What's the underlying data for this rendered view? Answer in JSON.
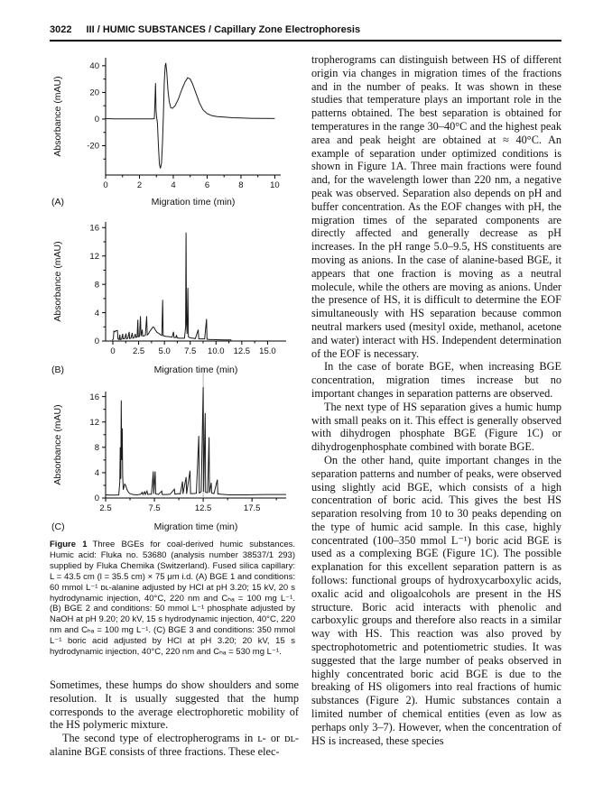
{
  "header": {
    "page_number": "3022",
    "running_title": "III / HUMIC SUBSTANCES / Capillary Zone Electrophoresis"
  },
  "figure": {
    "caption_lead": "Figure 1",
    "caption_text": "Three BGEs for coal-derived humic substances. Humic acid: Fluka no. 53680 (analysis number 38537/1 293) supplied by Fluka Chemika (Switzerland). Fused silica capillary: L = 43.5 cm (l = 35.5 cm) × 75 μm i.d. (A) BGE 1 and conditions: 60 mmol L⁻¹ ᴅʟ-alanine adjusted by HCl at pH 3.20; 15 kV, 20 s hydrodynamic injection, 40°C, 220 nm and Cₕₐ = 100 mg L⁻¹. (B) BGE 2 and conditions: 50 mmol L⁻¹ phosphate adjusted by NaOH at pH 9.20; 20 kV, 15 s hydrodynamic injection, 40°C, 220 nm and Cₕₐ = 100 mg L⁻¹. (C) BGE 3 and conditions: 350 mmol L⁻¹ boric acid adjusted by HCl at pH 3.20; 20 kV, 15 s hydrodynamic injection, 40°C, 220 nm and Cₕₐ = 530 mg L⁻¹."
  },
  "chart_data": [
    {
      "panel": "(A)",
      "type": "line",
      "xlabel": "Migration time (min)",
      "ylabel": "Absorbance (mAU)",
      "xlim": [
        0,
        10.35
      ],
      "ylim": [
        -42,
        46
      ],
      "xticks": {
        "values": [
          0,
          2,
          4,
          6,
          8,
          10
        ],
        "labels": [
          "0",
          "2",
          "4",
          "6",
          "8",
          "10"
        ]
      },
      "xminor": [
        1,
        3,
        5,
        7,
        9
      ],
      "yticks": {
        "values": [
          -20,
          0,
          20,
          40
        ],
        "labels": [
          "-20",
          "0",
          "20",
          "40"
        ]
      },
      "yminor": [
        -30,
        -10,
        10,
        30
      ],
      "line_color": "#1a1a1a",
      "points": [
        [
          0,
          0.3
        ],
        [
          0.5,
          0.2
        ],
        [
          1,
          0.2
        ],
        [
          1.5,
          0.1
        ],
        [
          2,
          0.2
        ],
        [
          2.5,
          0.1
        ],
        [
          2.8,
          0.2
        ],
        [
          2.88,
          0.5
        ],
        [
          2.92,
          14
        ],
        [
          2.95,
          27
        ],
        [
          2.98,
          6
        ],
        [
          3.02,
          1
        ],
        [
          3.06,
          -3
        ],
        [
          3.12,
          -20
        ],
        [
          3.18,
          -34
        ],
        [
          3.24,
          -37
        ],
        [
          3.3,
          -33
        ],
        [
          3.36,
          -18
        ],
        [
          3.42,
          5
        ],
        [
          3.47,
          28
        ],
        [
          3.52,
          40
        ],
        [
          3.56,
          42
        ],
        [
          3.62,
          34
        ],
        [
          3.68,
          22
        ],
        [
          3.76,
          13
        ],
        [
          3.85,
          8.5
        ],
        [
          3.95,
          8
        ],
        [
          4.1,
          10
        ],
        [
          4.3,
          15
        ],
        [
          4.5,
          22
        ],
        [
          4.7,
          28
        ],
        [
          4.85,
          31
        ],
        [
          5,
          30
        ],
        [
          5.15,
          26
        ],
        [
          5.35,
          19
        ],
        [
          5.55,
          12
        ],
        [
          5.75,
          7
        ],
        [
          6,
          4
        ],
        [
          6.3,
          2.5
        ],
        [
          6.6,
          1.8
        ],
        [
          7,
          1.5
        ],
        [
          7.5,
          1
        ],
        [
          8,
          0.8
        ],
        [
          8.5,
          0.6
        ],
        [
          9,
          0.5
        ],
        [
          9.5,
          0.5
        ],
        [
          10,
          0.4
        ]
      ]
    },
    {
      "panel": "(B)",
      "type": "line",
      "xlabel": "Migration time (min)",
      "ylabel": "Absorbance (mAU)",
      "xlim": [
        -0.7,
        16.8
      ],
      "ylim": [
        0,
        16.8
      ],
      "xticks": {
        "values": [
          0,
          2.5,
          5,
          7.5,
          10,
          12.5,
          15
        ],
        "labels": [
          "0",
          "2.5",
          "5.0",
          "7.5",
          "10.0",
          "12.5",
          "15.0"
        ]
      },
      "xminor": [
        1.25,
        3.75,
        6.25,
        8.75,
        11.25,
        13.75
      ],
      "yticks": {
        "values": [
          0,
          4,
          8,
          12,
          16
        ],
        "labels": [
          "0",
          "4",
          "8",
          "12",
          "16"
        ]
      },
      "yminor": [
        2,
        6,
        10,
        14
      ],
      "line_color": "#1a1a1a",
      "points": [
        [
          -0.05,
          0.1
        ],
        [
          0.05,
          0.3
        ],
        [
          0.1,
          1.4
        ],
        [
          0.2,
          1.3
        ],
        [
          0.3,
          1.45
        ],
        [
          0.45,
          1.5
        ],
        [
          0.5,
          0.3
        ],
        [
          0.6,
          0.2
        ],
        [
          0.68,
          0.9
        ],
        [
          0.72,
          0.2
        ],
        [
          0.85,
          0.25
        ],
        [
          0.95,
          1
        ],
        [
          1,
          0.3
        ],
        [
          1.15,
          0.35
        ],
        [
          1.28,
          1.05
        ],
        [
          1.33,
          0.3
        ],
        [
          1.45,
          0.4
        ],
        [
          1.58,
          1.3
        ],
        [
          1.63,
          0.35
        ],
        [
          1.75,
          0.4
        ],
        [
          1.88,
          1.15
        ],
        [
          1.93,
          0.4
        ],
        [
          2.05,
          0.45
        ],
        [
          2.18,
          1
        ],
        [
          2.23,
          0.5
        ],
        [
          2.35,
          0.6
        ],
        [
          2.42,
          3
        ],
        [
          2.47,
          0.6
        ],
        [
          2.58,
          0.65
        ],
        [
          2.68,
          3.5
        ],
        [
          2.73,
          0.7
        ],
        [
          2.85,
          1.6
        ],
        [
          2.9,
          0.7
        ],
        [
          3.05,
          0.75
        ],
        [
          3.15,
          0.8
        ],
        [
          3.28,
          3.5
        ],
        [
          3.33,
          0.85
        ],
        [
          3.45,
          1
        ],
        [
          3.6,
          1.4
        ],
        [
          3.75,
          1.7
        ],
        [
          3.9,
          2
        ],
        [
          4,
          1.9
        ],
        [
          4.15,
          1.5
        ],
        [
          4.3,
          1.2
        ],
        [
          4.45,
          1.1
        ],
        [
          4.6,
          0.9
        ],
        [
          4.75,
          0.8
        ],
        [
          4.83,
          5.8
        ],
        [
          4.88,
          0.75
        ],
        [
          5,
          0.7
        ],
        [
          5.2,
          0.65
        ],
        [
          5.5,
          0.6
        ],
        [
          5.75,
          0.55
        ],
        [
          5.88,
          1.3
        ],
        [
          5.93,
          0.5
        ],
        [
          6.1,
          0.5
        ],
        [
          6.18,
          0.85
        ],
        [
          6.23,
          0.45
        ],
        [
          6.45,
          0.4
        ],
        [
          6.7,
          0.4
        ],
        [
          6.95,
          0.4
        ],
        [
          7.05,
          2
        ],
        [
          7.1,
          15.3
        ],
        [
          7.14,
          2.5
        ],
        [
          7.2,
          1
        ],
        [
          7.27,
          7.5
        ],
        [
          7.32,
          0.6
        ],
        [
          7.5,
          0.45
        ],
        [
          7.75,
          0.4
        ],
        [
          8,
          0.35
        ],
        [
          8.28,
          1.6
        ],
        [
          8.33,
          0.3
        ],
        [
          8.6,
          0.3
        ],
        [
          8.9,
          0.3
        ],
        [
          9.08,
          3.1
        ],
        [
          9.13,
          0.25
        ],
        [
          9.4,
          0.2
        ],
        [
          9.8,
          0.2
        ],
        [
          10.3,
          0.18
        ],
        [
          10.9,
          0.15
        ],
        [
          11.5,
          0.15
        ]
      ]
    },
    {
      "panel": "(C)",
      "type": "line",
      "xlabel": "Migration time (min)",
      "ylabel": "Absorbance (mAU)",
      "xlim": [
        2.5,
        21
      ],
      "ylim": [
        0,
        16.8
      ],
      "xticks": {
        "values": [
          2.5,
          7.5,
          12.5,
          17.5
        ],
        "labels": [
          "2.5",
          "7.5",
          "12.5",
          "17.5"
        ]
      },
      "xminor": [
        5,
        10,
        15,
        20
      ],
      "yticks": {
        "values": [
          0,
          4,
          8,
          12,
          16
        ],
        "labels": [
          "0",
          "4",
          "8",
          "12",
          "16"
        ]
      },
      "yminor": [
        2,
        6,
        10,
        14
      ],
      "line_color": "#1a1a1a",
      "clipped_peak_x": 12.5,
      "clipped_line_color": "#b5b5b5",
      "points": [
        [
          2.5,
          0.5
        ],
        [
          3,
          0.45
        ],
        [
          3.5,
          0.45
        ],
        [
          3.85,
          0.5
        ],
        [
          3.95,
          2.5
        ],
        [
          4,
          8
        ],
        [
          4.05,
          3
        ],
        [
          4.1,
          15.4
        ],
        [
          4.15,
          6
        ],
        [
          4.2,
          11
        ],
        [
          4.25,
          3.5
        ],
        [
          4.3,
          1.3
        ],
        [
          4.45,
          2.2
        ],
        [
          4.55,
          2
        ],
        [
          4.7,
          1.3
        ],
        [
          4.85,
          0.9
        ],
        [
          5,
          0.7
        ],
        [
          5.3,
          0.55
        ],
        [
          5.7,
          0.5
        ],
        [
          6.1,
          0.6
        ],
        [
          6.25,
          0.9
        ],
        [
          6.32,
          0.55
        ],
        [
          6.5,
          1
        ],
        [
          6.57,
          0.55
        ],
        [
          6.75,
          1.1
        ],
        [
          6.82,
          0.55
        ],
        [
          7,
          0.6
        ],
        [
          7.2,
          0.6
        ],
        [
          7.38,
          4.2
        ],
        [
          7.43,
          0.65
        ],
        [
          7.58,
          4.2
        ],
        [
          7.63,
          0.65
        ],
        [
          7.9,
          0.55
        ],
        [
          8.25,
          1.1
        ],
        [
          8.3,
          0.55
        ],
        [
          8.7,
          0.55
        ],
        [
          9.1,
          0.6
        ],
        [
          9.55,
          1.4
        ],
        [
          9.6,
          0.6
        ],
        [
          9.95,
          0.7
        ],
        [
          10.15,
          0.65
        ],
        [
          10.38,
          2.6
        ],
        [
          10.43,
          0.65
        ],
        [
          10.75,
          3.3
        ],
        [
          10.8,
          0.65
        ],
        [
          11.15,
          4.3
        ],
        [
          11.2,
          0.7
        ],
        [
          11.5,
          0.7
        ],
        [
          11.8,
          0.75
        ],
        [
          12.05,
          9.8
        ],
        [
          12.1,
          0.8
        ],
        [
          12.3,
          1
        ],
        [
          12.5,
          17.5
        ],
        [
          12.55,
          1
        ],
        [
          12.7,
          13.4
        ],
        [
          12.75,
          0.9
        ],
        [
          12.95,
          0.85
        ],
        [
          13.1,
          9.6
        ],
        [
          13.15,
          0.85
        ],
        [
          13.32,
          2.4
        ],
        [
          13.37,
          0.8
        ],
        [
          13.6,
          0.7
        ],
        [
          13.95,
          2.9
        ],
        [
          14,
          0.65
        ],
        [
          14.3,
          0.6
        ],
        [
          14.7,
          0.55
        ],
        [
          15.2,
          0.5
        ],
        [
          16,
          0.5
        ],
        [
          17,
          0.5
        ],
        [
          18,
          0.52
        ],
        [
          19,
          0.55
        ],
        [
          20,
          0.55
        ],
        [
          21,
          0.55
        ]
      ]
    }
  ],
  "left_column": {
    "paragraphs": [
      "Sometimes, these humps do show shoulders and some resolution. It is usually suggested that the hump corresponds to the average electrophoretic mobility of the HS polymeric mixture.",
      "The second type of electropherograms in ʟ- or ᴅʟ-alanine BGE consists of three fractions. These elec-"
    ]
  },
  "right_column": {
    "paragraphs": [
      "tropherograms can distinguish between HS of different origin via changes in migration times of the fractions and in the number of peaks. It was shown in these studies that temperature plays an important role in the patterns obtained. The best separation is obtained for temperatures in the range 30–40°C and the highest peak area and peak height are obtained at ≈ 40°C. An example of separation under optimized conditions is shown in Figure 1A. Three main fractions were found and, for the wavelength lower than 220 nm, a negative peak was observed. Separation also depends on pH and buffer concentration. As the EOF changes with pH, the migration times of the separated components are directly affected and generally decrease as pH increases. In the pH range 5.0–9.5, HS constituents are moving as anions. In the case of alanine-based BGE, it appears that one fraction is moving as a neutral molecule, while the others are moving as anions. Under the presence of HS, it is difficult to determine the EOF simultaneously with HS separation because common neutral markers used (mesityl oxide, methanol, acetone and water) interact with HS. Independent determination of the EOF is necessary.",
      "In the case of borate BGE, when increasing BGE concentration, migration times increase but no important changes in separation patterns are observed.",
      "The next type of HS separation gives a humic hump with small peaks on it. This effect is generally observed with dihydrogen phosphate BGE (Figure 1C) or dihydrogenphosphate combined with borate BGE.",
      "On the other hand, quite important changes in the separation patterns and number of peaks, were observed using slightly acid BGE, which consists of a high concentration of boric acid. This gives the best HS separation resolving from 10 to 30 peaks depending on the type of humic acid sample. In this case, highly concentrated (100–350 mmol L⁻¹) boric acid BGE is used as a complexing BGE (Figure 1C). The possible explanation for this excellent separation pattern is as follows: functional groups of hydroxycarboxylic acids, oxalic acid and oligoalcohols are present in the HS structure. Boric acid interacts with phenolic and carboxylic groups and therefore also reacts in a similar way with HS. This reaction was also proved by spectrophotometric and potentiometric studies. It was suggested that the large number of peaks observed in highly concentrated boric acid BGE is due to the breaking of HS oligomers into real fractions of humic substances (Figure 2). Humic substances contain a limited number of chemical entities (even as low as perhaps only 3–7). However, when the concentration of HS is increased, these species"
    ]
  }
}
